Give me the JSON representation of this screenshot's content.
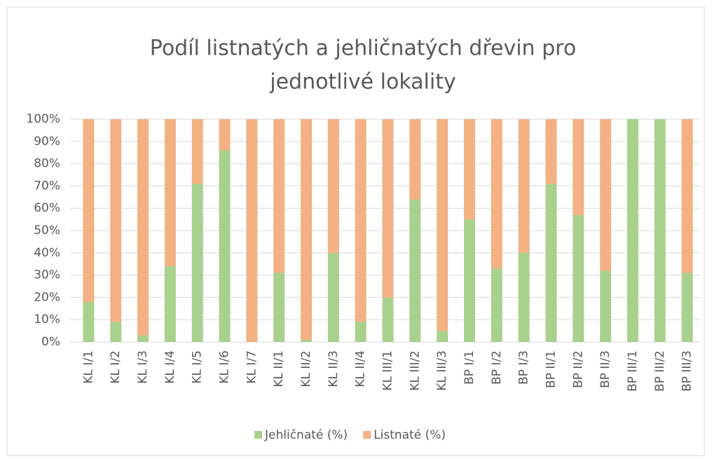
{
  "chart_data": {
    "type": "stacked_bar",
    "title": [
      "Podíl listnatých a jehličnatých dřevin pro",
      "jednotlivé lokality"
    ],
    "categories": [
      "KL I/1",
      "KL I/2",
      "KL I/3",
      "KL I/4",
      "KL I/5",
      "KL I/6",
      "KL I/7",
      "KL II/1",
      "KL II/2",
      "KL II/3",
      "KL II/4",
      "KL III/1",
      "KL III/2",
      "KL III/3",
      "BP I/1",
      "BP I/2",
      "BP I/3",
      "BP II/1",
      "BP II/2",
      "BP II/3",
      "BP III/1",
      "BP III/2",
      "BP III/3"
    ],
    "series": [
      {
        "name": "Jehličnaté (%)",
        "color": "#a9d18e",
        "values": [
          18,
          9,
          3,
          34,
          71,
          86,
          0,
          31,
          1,
          40,
          9,
          20,
          64,
          5,
          55,
          33,
          40,
          71,
          57,
          32,
          100,
          100,
          31
        ]
      },
      {
        "name": "Listnaté (%)",
        "color": "#f4b183",
        "values": [
          82,
          91,
          97,
          66,
          29,
          14,
          100,
          69,
          99,
          60,
          91,
          80,
          36,
          95,
          45,
          67,
          60,
          29,
          43,
          68,
          0,
          0,
          69
        ]
      }
    ],
    "ylim": [
      0,
      100
    ],
    "yticks": [
      {
        "value": 0,
        "label": "0%"
      },
      {
        "value": 10,
        "label": "10%"
      },
      {
        "value": 20,
        "label": "20%"
      },
      {
        "value": 30,
        "label": "30%"
      },
      {
        "value": 40,
        "label": "40%"
      },
      {
        "value": 50,
        "label": "50%"
      },
      {
        "value": 60,
        "label": "60%"
      },
      {
        "value": 70,
        "label": "70%"
      },
      {
        "value": 80,
        "label": "80%"
      },
      {
        "value": 90,
        "label": "90%"
      },
      {
        "value": 100,
        "label": "100%"
      }
    ],
    "grid": true,
    "legend": "bottom"
  }
}
